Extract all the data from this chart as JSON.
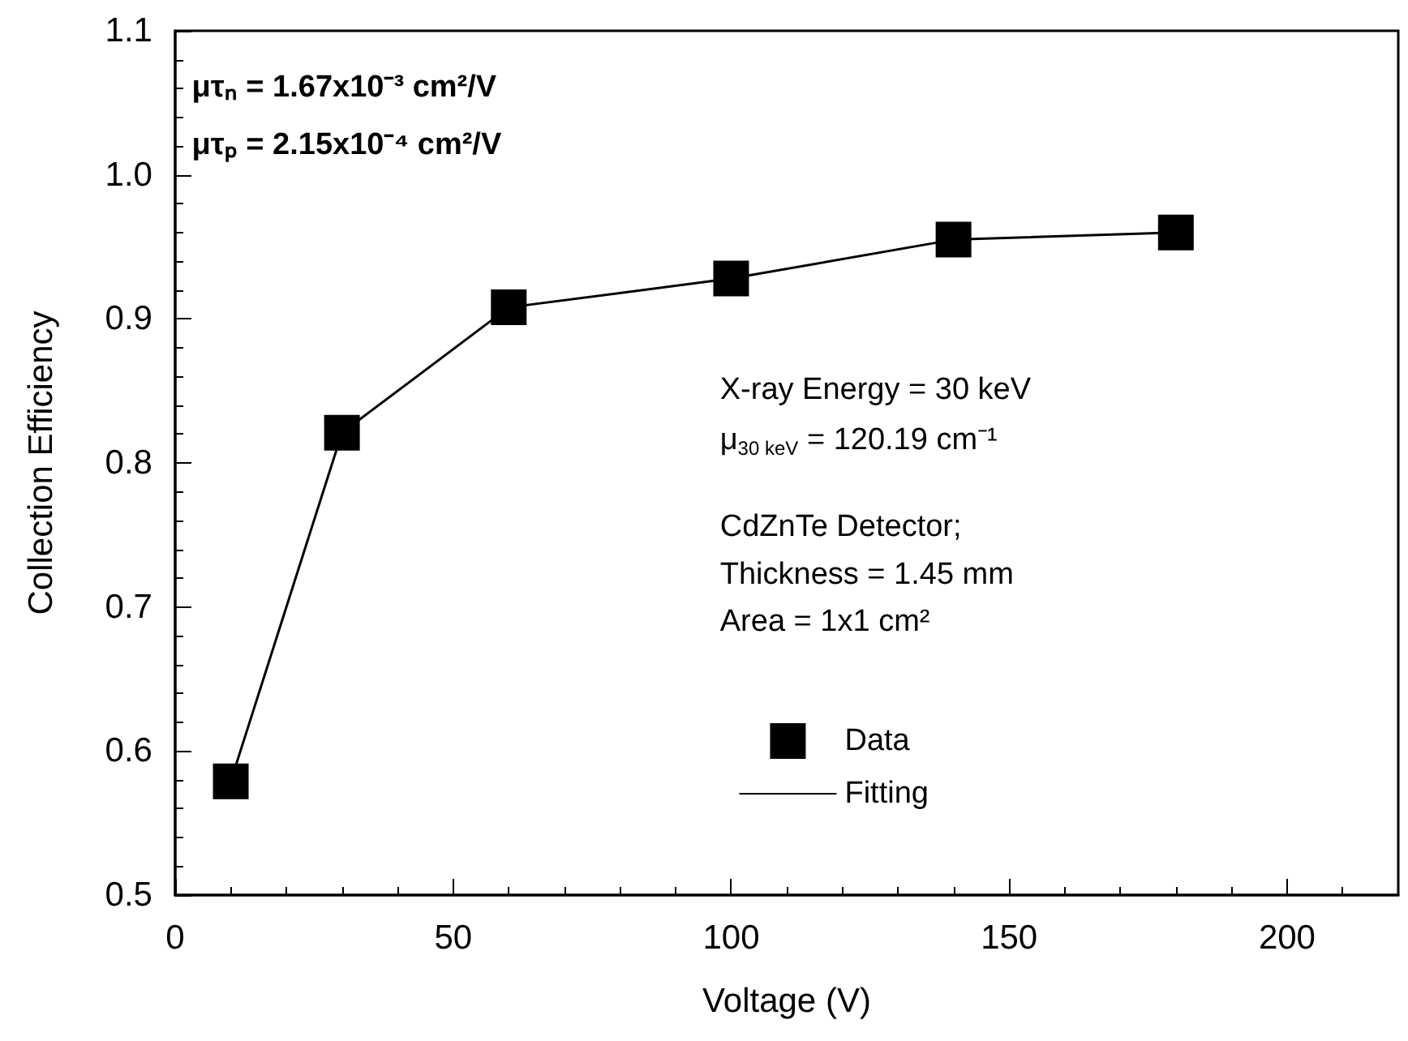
{
  "chart_data": {
    "type": "scatter",
    "xlabel": "Voltage (V)",
    "ylabel": "Collection Efficiency",
    "xlim": [
      0,
      220
    ],
    "xticks": [
      0,
      50,
      100,
      150,
      200
    ],
    "ylim": [
      0.5,
      1.1
    ],
    "yticks": [
      0.5,
      0.6,
      0.7,
      0.8,
      0.9,
      {
        "value": 1,
        "label": "1.0"
      },
      1.1
    ],
    "grid": false,
    "legend": "right",
    "series": [
      {
        "name": "Data",
        "marker": "square",
        "color": "#000000",
        "x": [
          10,
          30,
          60,
          100,
          140,
          180
        ],
        "values": [
          0.579,
          0.821,
          0.908,
          0.928,
          0.955,
          0.96
        ]
      },
      {
        "name": "Fitting",
        "type": "line",
        "marker": "none",
        "line_style": "solid",
        "color": "#000000",
        "x": [
          10,
          30,
          60,
          100,
          140,
          180
        ],
        "values": [
          0.579,
          0.821,
          0.908,
          0.928,
          0.955,
          0.96
        ]
      }
    ],
    "annotations": [
      "μτₙ = 1.67x10⁻³ cm²/V",
      "μτₚ = 2.15x10⁻⁴ cm²/V",
      "X-ray Energy = 30 keV",
      "μ$_{30 keV}$ = 120.19 cm⁻¹",
      "CdZnTe Detector;",
      "Thickness = 1.45 mm",
      "Area = 1x1 cm²"
    ]
  }
}
